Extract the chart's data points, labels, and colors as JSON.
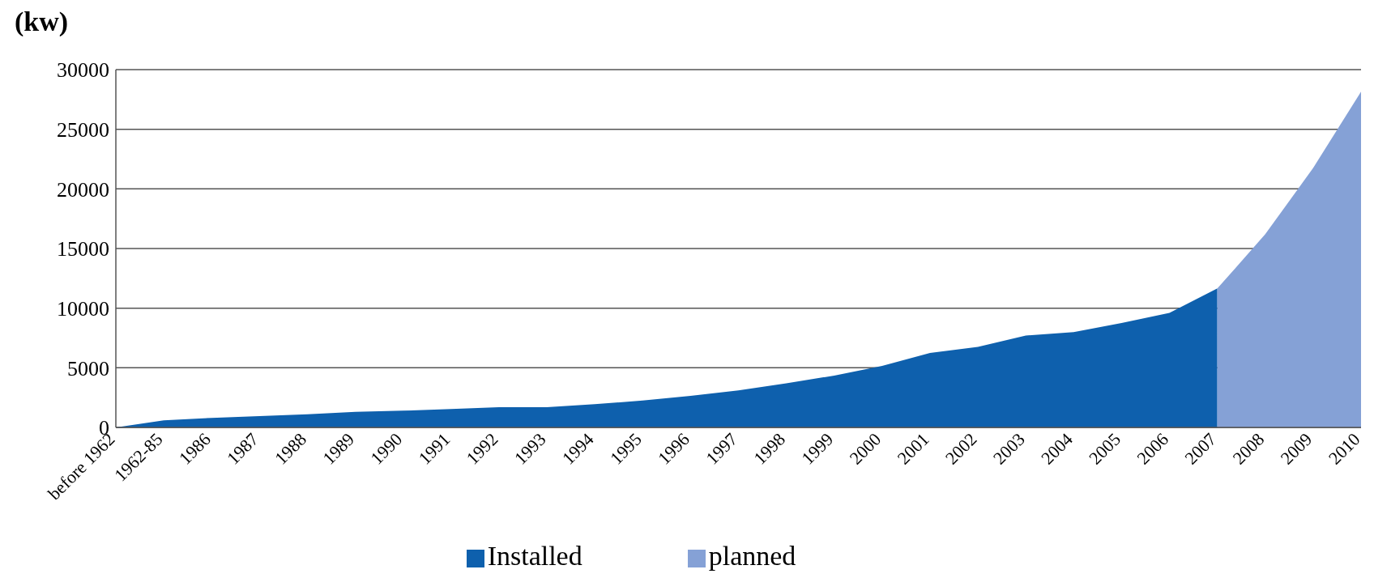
{
  "chart_data": {
    "type": "area",
    "ylabel": "(kw)",
    "categories": [
      "before 1962",
      "1962-85",
      "1986",
      "1987",
      "1988",
      "1989",
      "1990",
      "1991",
      "1992",
      "1993",
      "1994",
      "1995",
      "1996",
      "1997",
      "1998",
      "1999",
      "2000",
      "2001",
      "2002",
      "2003",
      "2004",
      "2005",
      "2006",
      "2007",
      "2008",
      "2009",
      "2010"
    ],
    "series": [
      {
        "name": "Installed",
        "color": "#0e60ad",
        "values": [
          0,
          600,
          800,
          950,
          1100,
          1300,
          1400,
          1550,
          1700,
          1700,
          1950,
          2250,
          2650,
          3100,
          3700,
          4350,
          5150,
          6250,
          6750,
          7700,
          8000,
          8750,
          9600,
          11650,
          null,
          null,
          null
        ]
      },
      {
        "name": "planned",
        "color": "#85a1d6",
        "values": [
          null,
          null,
          null,
          null,
          null,
          null,
          null,
          null,
          null,
          null,
          null,
          null,
          null,
          null,
          null,
          null,
          null,
          null,
          null,
          null,
          null,
          null,
          null,
          11650,
          16200,
          21750,
          28150
        ]
      }
    ],
    "ylim": [
      0,
      30000
    ],
    "yticks": [
      0,
      5000,
      10000,
      15000,
      20000,
      25000,
      30000
    ],
    "grid": "y",
    "legend": "bottom"
  }
}
